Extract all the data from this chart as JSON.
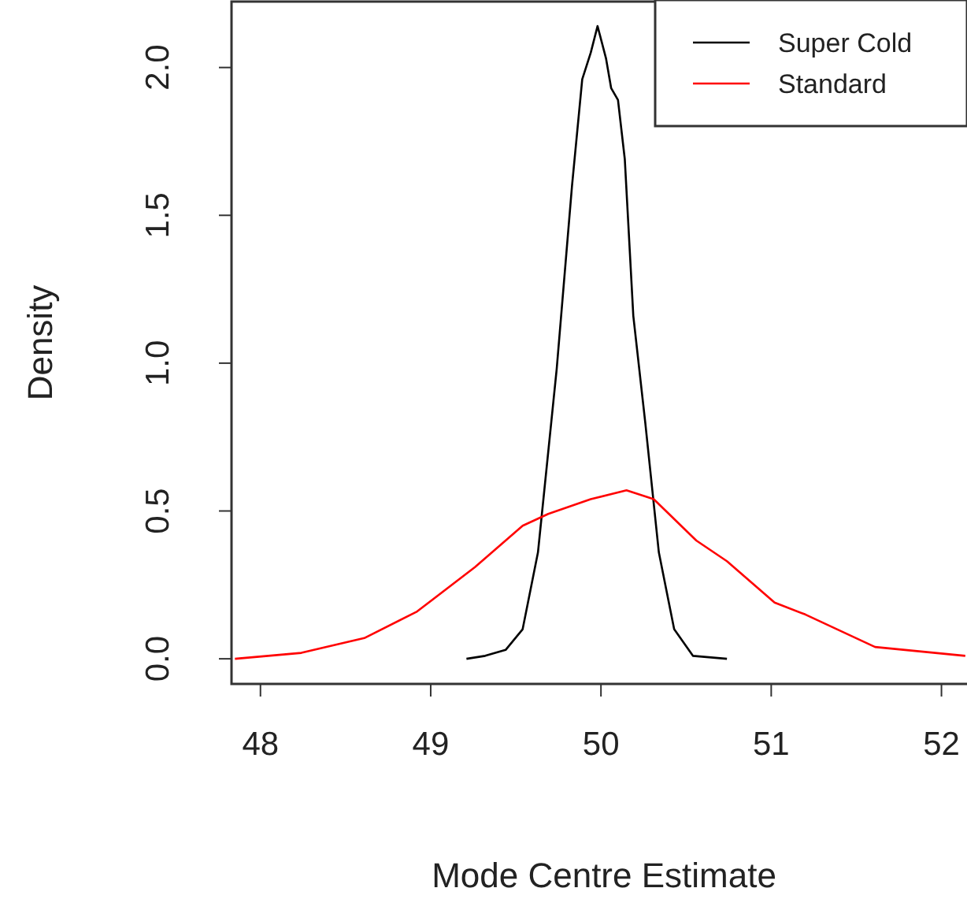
{
  "chart_data": {
    "type": "line",
    "xlabel": "Mode Centre Estimate",
    "ylabel": "Density",
    "xlim": [
      47.83,
      52.15
    ],
    "xticks": [
      48,
      49,
      50,
      51,
      52
    ],
    "ylim": [
      -0.085,
      2.223
    ],
    "yticks": [
      {
        "value": 0,
        "label": "0.0"
      },
      {
        "value": 0.5,
        "label": "0.5"
      },
      {
        "value": 1,
        "label": "1.0"
      },
      {
        "value": 1.5,
        "label": "1.5"
      },
      {
        "value": 2,
        "label": "2.0"
      }
    ],
    "grid": false,
    "legend": "top right",
    "marker": "none",
    "line_style": "solid",
    "series": [
      {
        "name": "Super Cold",
        "color": "#000000",
        "x": [
          49.21,
          49.32,
          49.44,
          49.54,
          49.63,
          49.74,
          49.83,
          49.89,
          49.94,
          49.98,
          50.03,
          50.06,
          50.1,
          50.14,
          50.19,
          50.26,
          50.34,
          50.43,
          50.54,
          50.74
        ],
        "values": [
          0.0,
          0.01,
          0.03,
          0.1,
          0.36,
          0.98,
          1.6,
          1.96,
          2.05,
          2.14,
          2.03,
          1.93,
          1.89,
          1.69,
          1.16,
          0.8,
          0.36,
          0.1,
          0.01,
          0.0
        ]
      },
      {
        "name": "Standard",
        "color": "#ff0000",
        "x": [
          47.85,
          48.24,
          48.61,
          48.92,
          49.26,
          49.54,
          49.69,
          49.94,
          50.15,
          50.31,
          50.56,
          50.74,
          51.02,
          51.2,
          51.61,
          52.14
        ],
        "values": [
          0.0,
          0.02,
          0.07,
          0.16,
          0.31,
          0.45,
          0.49,
          0.54,
          0.57,
          0.54,
          0.4,
          0.33,
          0.19,
          0.15,
          0.04,
          0.01
        ]
      }
    ]
  }
}
